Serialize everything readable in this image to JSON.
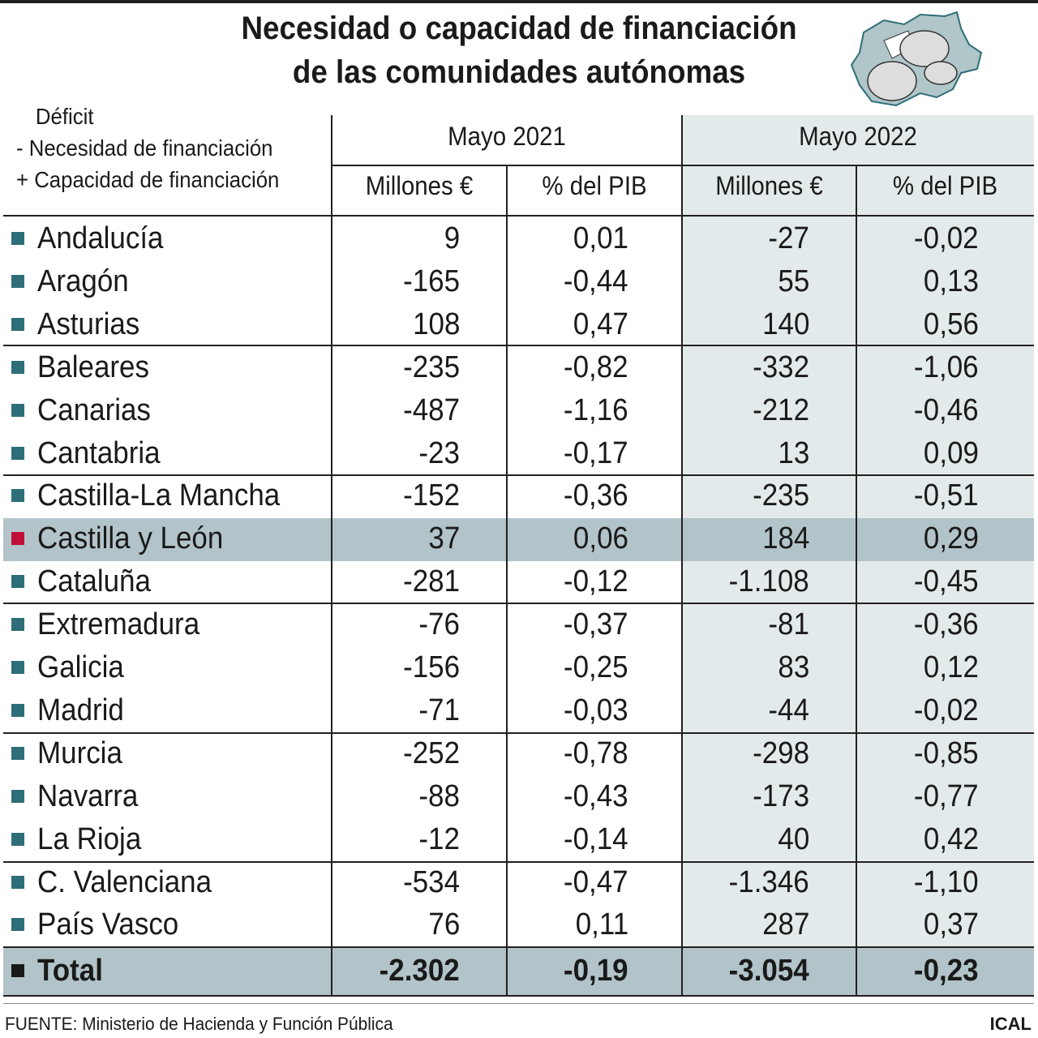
{
  "title_line1": "Necesidad o capacidad de financiación",
  "title_line2": "de las comunidades autónomas",
  "legend": {
    "l1": "Déficit",
    "l2": "-  Necesidad de financiación",
    "l3": "+ Capacidad de financiación"
  },
  "chart_data": {
    "type": "table",
    "periods": [
      "Mayo 2021",
      "Mayo 2022"
    ],
    "subcolumns": [
      "Millones €",
      "% del PIB",
      "Millones €",
      "% del PIB"
    ],
    "highlight": "Castilla y León",
    "colors": {
      "marker": "#2e6e78",
      "highlight_marker": "#c0103a",
      "highlight_row": "#b2c4c9",
      "shade": "#e3eaeb"
    },
    "rows": [
      {
        "name": "Andalucía",
        "v": [
          "9",
          "0,01",
          "-27",
          "-0,02"
        ]
      },
      {
        "name": "Aragón",
        "v": [
          "-165",
          "-0,44",
          "55",
          "0,13"
        ]
      },
      {
        "name": "Asturias",
        "v": [
          "108",
          "0,47",
          "140",
          "0,56"
        ]
      },
      {
        "name": "Baleares",
        "v": [
          "-235",
          "-0,82",
          "-332",
          "-1,06"
        ]
      },
      {
        "name": "Canarias",
        "v": [
          "-487",
          "-1,16",
          "-212",
          "-0,46"
        ]
      },
      {
        "name": "Cantabria",
        "v": [
          "-23",
          "-0,17",
          "13",
          "0,09"
        ]
      },
      {
        "name": "Castilla-La Mancha",
        "v": [
          "-152",
          "-0,36",
          "-235",
          "-0,51"
        ]
      },
      {
        "name": "Castilla y León",
        "v": [
          "37",
          "0,06",
          "184",
          "0,29"
        ]
      },
      {
        "name": "Cataluña",
        "v": [
          "-281",
          "-0,12",
          "-1.108",
          "-0,45"
        ]
      },
      {
        "name": "Extremadura",
        "v": [
          "-76",
          "-0,37",
          "-81",
          "-0,36"
        ]
      },
      {
        "name": "Galicia",
        "v": [
          "-156",
          "-0,25",
          "83",
          "0,12"
        ]
      },
      {
        "name": "Madrid",
        "v": [
          "-71",
          "-0,03",
          "-44",
          "-0,02"
        ]
      },
      {
        "name": "Murcia",
        "v": [
          "-252",
          "-0,78",
          "-298",
          "-0,85"
        ]
      },
      {
        "name": "Navarra",
        "v": [
          "-88",
          "-0,43",
          "-173",
          "-0,77"
        ]
      },
      {
        "name": "La Rioja",
        "v": [
          "-12",
          "-0,14",
          "40",
          "0,42"
        ]
      },
      {
        "name": "C. Valenciana",
        "v": [
          "-534",
          "-0,47",
          "-1.346",
          "-1,10"
        ]
      },
      {
        "name": "País Vasco",
        "v": [
          "76",
          "0,11",
          "287",
          "0,37"
        ]
      }
    ],
    "total": {
      "name": "Total",
      "v": [
        "-2.302",
        "-0,19",
        "-3.054",
        "-0,23"
      ]
    }
  },
  "source": "FUENTE: Ministerio de Hacienda y Función Pública",
  "brand": "ICAL"
}
